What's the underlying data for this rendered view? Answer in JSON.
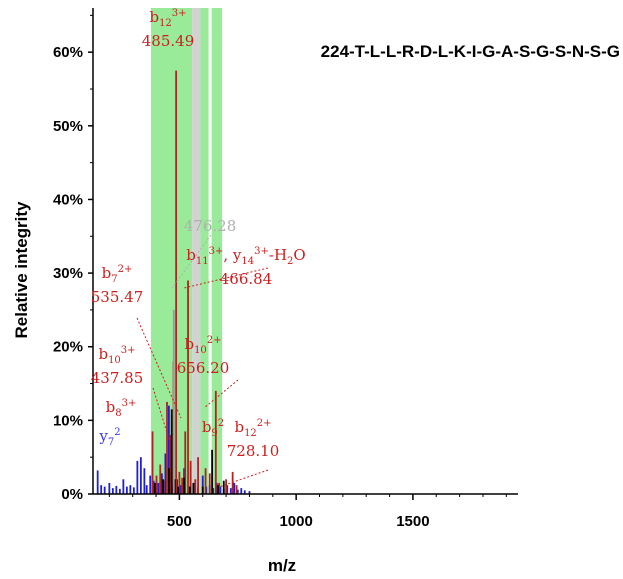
{
  "chart_data": {
    "type": "bar",
    "title": "224-T-L-L-R-D-L-K-I-G-A-S-G-S-N-S-G",
    "xlabel": "m/z",
    "ylabel": "Relative integrity",
    "xlim": [
      130,
      1950
    ],
    "ylim": [
      0,
      66
    ],
    "xticks": [
      "500",
      "1000",
      "1500"
    ],
    "xtick_values": [
      500,
      1000,
      1500
    ],
    "yticks": [
      "0%",
      "10%",
      "20%",
      "30%",
      "40%",
      "50%",
      "60%"
    ],
    "ytick_values": [
      0,
      10,
      20,
      30,
      40,
      50,
      60
    ],
    "colors": {
      "red": "#b22222",
      "blue": "#1f1fd0",
      "black": "#000000",
      "gray": "#9a9a9a",
      "green_band": "#8ee88e",
      "gray_band": "#d0d0d0",
      "label_red": "#cc2020",
      "label_gray": "#b0b0b0",
      "label_blue": "#3a3af0"
    },
    "highlight_bands": [
      {
        "from": 378,
        "to": 555,
        "color": "green"
      },
      {
        "from": 555,
        "to": 590,
        "color": "gray"
      },
      {
        "from": 590,
        "to": 625,
        "color": "green"
      },
      {
        "from": 638,
        "to": 683,
        "color": "green"
      }
    ],
    "series": [
      {
        "color": "blue",
        "x": [
          150,
          165,
          180,
          200,
          215,
          230,
          245,
          260,
          275,
          290,
          305,
          320,
          335,
          350,
          360,
          375,
          390,
          410,
          425,
          440,
          455,
          470,
          490,
          505,
          520,
          540,
          560,
          580,
          600,
          615,
          630,
          645,
          660,
          675,
          690,
          705,
          720,
          735,
          750,
          765,
          780,
          800
        ],
        "values": [
          3.2,
          1.2,
          1.0,
          1.5,
          0.8,
          1.1,
          0.7,
          2.0,
          1.0,
          1.2,
          0.9,
          4.5,
          5.0,
          3.5,
          1.2,
          2.5,
          1.8,
          1.5,
          2.8,
          5.5,
          12.0,
          1.5,
          2.0,
          1.2,
          3.5,
          1.0,
          1.5,
          0.9,
          2.5,
          1.0,
          1.2,
          0.8,
          1.5,
          1.0,
          0.7,
          1.2,
          0.8,
          1.5,
          0.6,
          0.8,
          0.5,
          0.4
        ]
      },
      {
        "color": "red",
        "x": [
          385,
          402,
          418,
          432,
          447,
          462,
          475,
          486,
          500,
          512,
          525,
          537,
          548,
          568,
          580,
          612,
          630,
          656,
          670,
          700,
          728,
          745
        ],
        "values": [
          8.5,
          2.5,
          4.0,
          1.8,
          12.5,
          8.0,
          18.0,
          57.5,
          3.0,
          2.2,
          8.5,
          29.0,
          4.5,
          2.0,
          5.0,
          3.5,
          2.8,
          14.0,
          1.5,
          2.0,
          3.0,
          1.2
        ]
      },
      {
        "color": "black",
        "x": [
          395,
          430,
          455,
          467,
          480,
          495,
          520,
          545,
          560,
          600,
          640,
          665,
          690
        ],
        "values": [
          1.5,
          2.0,
          3.5,
          11.5,
          2.0,
          1.0,
          2.2,
          1.0,
          1.5,
          1.0,
          6.0,
          1.2,
          1.8
        ]
      },
      {
        "color": "gray",
        "x": [
          476
        ],
        "values": [
          25.0
        ]
      }
    ],
    "annotations": [
      {
        "lines": [
          {
            "ion": "b",
            "sub": "12",
            "sup": "3+"
          },
          {
            "text": "485.49"
          }
        ],
        "color": "label_red"
      },
      {
        "lines": [
          {
            "text": "476.28"
          }
        ],
        "color": "label_gray"
      },
      {
        "lines": [
          {
            "ion": "b",
            "sub": "11",
            "sup": "3+",
            "rest_text": ", y",
            "rest_sub": "14",
            "rest_sup": "3+",
            "tail": "-H",
            "tail_sub": "2",
            "tail_end": "O"
          },
          {
            "text": "466.84"
          }
        ],
        "color": "label_red"
      },
      {
        "lines": [
          {
            "ion": "b",
            "sub": "7",
            "sup": "2+"
          },
          {
            "text": "535.47"
          }
        ],
        "color": "label_red"
      },
      {
        "lines": [
          {
            "ion": "b",
            "sub": "10",
            "sup": "3+"
          },
          {
            "text": "437.85"
          }
        ],
        "color": "label_red"
      },
      {
        "lines": [
          {
            "ion": "b",
            "sub": "10",
            "sup": "2+"
          },
          {
            "text": "656.20"
          }
        ],
        "color": "label_red"
      },
      {
        "lines": [
          {
            "ion": "b",
            "sub": "8",
            "sup": "3+"
          }
        ],
        "color": "label_red"
      },
      {
        "lines": [
          {
            "ion": "b",
            "sub": "9",
            "sup": "2"
          }
        ],
        "color": "label_red"
      },
      {
        "lines": [
          {
            "ion": "b",
            "sub": "12",
            "sup": "2+"
          },
          {
            "text": "728.10"
          }
        ],
        "color": "label_red"
      },
      {
        "lines": [
          {
            "ion": "y",
            "sub": "7",
            "sup": "2"
          }
        ],
        "color": "label_blue"
      }
    ],
    "grid": false,
    "legend": "none"
  }
}
